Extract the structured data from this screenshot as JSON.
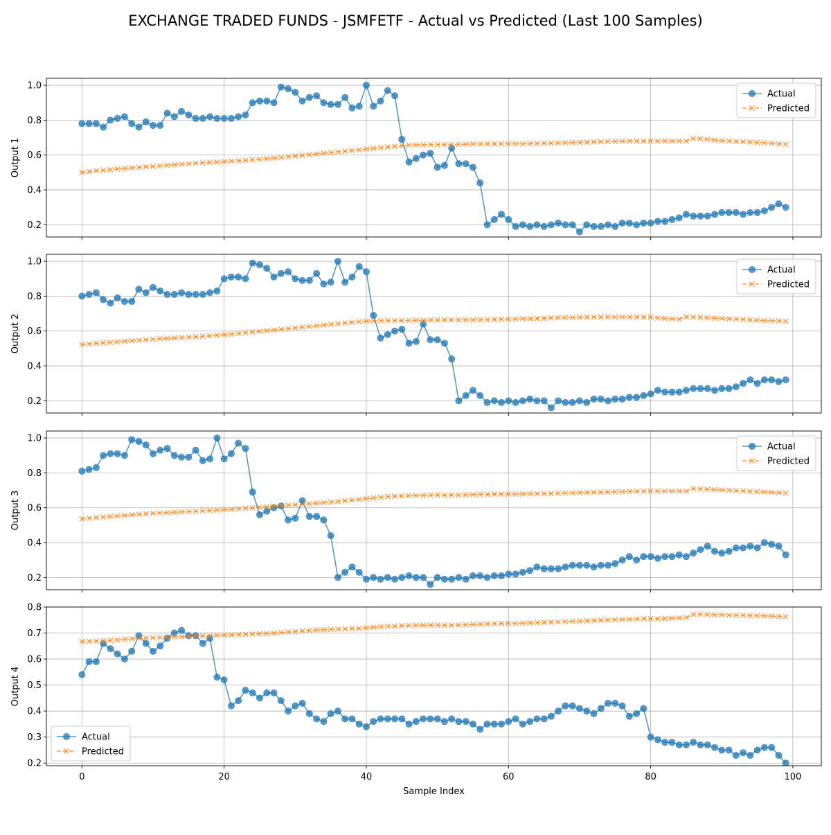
{
  "figure": {
    "title": "EXCHANGE TRADED FUNDS - JSMFETF - Actual vs Predicted (Last 100 Samples)",
    "xlabel": "Sample Index"
  },
  "colors": {
    "actual": "#1f77b4",
    "predicted": "#ff7f0e",
    "grid": "#b0b0b0"
  },
  "chart_data": [
    {
      "type": "line",
      "ylabel": "Output 1",
      "xlim": [
        -5,
        104
      ],
      "ylim": [
        0.13,
        1.04
      ],
      "xticks": [
        0,
        20,
        40,
        60,
        80,
        100
      ],
      "yticks": [
        0.2,
        0.4,
        0.6,
        0.8,
        1.0
      ],
      "ytick_labels": [
        "0.2",
        "0.4",
        "0.6",
        "0.8",
        "1.0"
      ],
      "grid": true,
      "legend": "top-right",
      "series": [
        {
          "name": "Actual",
          "marker": "circle",
          "values": [
            0.78,
            0.78,
            0.78,
            0.76,
            0.8,
            0.81,
            0.82,
            0.78,
            0.76,
            0.79,
            0.77,
            0.77,
            0.84,
            0.82,
            0.85,
            0.83,
            0.81,
            0.81,
            0.82,
            0.81,
            0.81,
            0.81,
            0.82,
            0.83,
            0.9,
            0.91,
            0.91,
            0.9,
            0.99,
            0.98,
            0.96,
            0.91,
            0.93,
            0.94,
            0.9,
            0.89,
            0.89,
            0.93,
            0.87,
            0.88,
            1.0,
            0.88,
            0.91,
            0.97,
            0.94,
            0.69,
            0.56,
            0.58,
            0.6,
            0.61,
            0.53,
            0.54,
            0.64,
            0.55,
            0.55,
            0.53,
            0.44,
            0.2,
            0.23,
            0.26,
            0.23,
            0.19,
            0.2,
            0.19,
            0.2,
            0.19,
            0.2,
            0.21,
            0.2,
            0.2,
            0.16,
            0.2,
            0.19,
            0.19,
            0.2,
            0.19,
            0.21,
            0.21,
            0.2,
            0.21,
            0.21,
            0.22,
            0.22,
            0.23,
            0.24,
            0.26,
            0.25,
            0.25,
            0.25,
            0.26,
            0.27,
            0.27,
            0.27,
            0.26,
            0.27,
            0.27,
            0.28,
            0.3,
            0.32,
            0.3
          ]
        },
        {
          "name": "Predicted",
          "marker": "x",
          "values": [
            0.5,
            0.505,
            0.51,
            0.513,
            0.516,
            0.52,
            0.523,
            0.526,
            0.529,
            0.532,
            0.535,
            0.538,
            0.541,
            0.544,
            0.547,
            0.55,
            0.553,
            0.556,
            0.558,
            0.56,
            0.562,
            0.565,
            0.567,
            0.57,
            0.573,
            0.576,
            0.579,
            0.582,
            0.586,
            0.59,
            0.594,
            0.598,
            0.602,
            0.606,
            0.61,
            0.614,
            0.618,
            0.622,
            0.626,
            0.63,
            0.634,
            0.638,
            0.642,
            0.646,
            0.65,
            0.654,
            0.657,
            0.658,
            0.659,
            0.66,
            0.66,
            0.66,
            0.66,
            0.661,
            0.662,
            0.663,
            0.663,
            0.664,
            0.664,
            0.664,
            0.664,
            0.664,
            0.664,
            0.665,
            0.666,
            0.667,
            0.668,
            0.669,
            0.67,
            0.671,
            0.672,
            0.673,
            0.675,
            0.676,
            0.677,
            0.678,
            0.679,
            0.68,
            0.68,
            0.68,
            0.68,
            0.68,
            0.68,
            0.68,
            0.68,
            0.68,
            0.695,
            0.693,
            0.69,
            0.685,
            0.682,
            0.68,
            0.678,
            0.676,
            0.674,
            0.672,
            0.67,
            0.667,
            0.664,
            0.662
          ]
        }
      ]
    },
    {
      "type": "line",
      "ylabel": "Output 2",
      "xlim": [
        -5,
        104
      ],
      "ylim": [
        0.13,
        1.04
      ],
      "xticks": [
        0,
        20,
        40,
        60,
        80,
        100
      ],
      "yticks": [
        0.2,
        0.4,
        0.6,
        0.8,
        1.0
      ],
      "ytick_labels": [
        "0.2",
        "0.4",
        "0.6",
        "0.8",
        "1.0"
      ],
      "grid": true,
      "legend": "top-right",
      "series": [
        {
          "name": "Actual",
          "marker": "circle",
          "values": [
            0.8,
            0.81,
            0.82,
            0.78,
            0.76,
            0.79,
            0.77,
            0.77,
            0.84,
            0.82,
            0.85,
            0.83,
            0.81,
            0.81,
            0.82,
            0.81,
            0.81,
            0.81,
            0.82,
            0.83,
            0.9,
            0.91,
            0.91,
            0.9,
            0.99,
            0.98,
            0.96,
            0.91,
            0.93,
            0.94,
            0.9,
            0.89,
            0.89,
            0.93,
            0.87,
            0.88,
            1.0,
            0.88,
            0.91,
            0.97,
            0.94,
            0.69,
            0.56,
            0.58,
            0.6,
            0.61,
            0.53,
            0.54,
            0.64,
            0.55,
            0.55,
            0.53,
            0.44,
            0.2,
            0.23,
            0.26,
            0.23,
            0.19,
            0.2,
            0.19,
            0.2,
            0.19,
            0.2,
            0.21,
            0.2,
            0.2,
            0.16,
            0.2,
            0.19,
            0.19,
            0.2,
            0.19,
            0.21,
            0.21,
            0.2,
            0.21,
            0.21,
            0.22,
            0.22,
            0.23,
            0.24,
            0.26,
            0.25,
            0.25,
            0.25,
            0.26,
            0.27,
            0.27,
            0.27,
            0.26,
            0.27,
            0.27,
            0.28,
            0.3,
            0.32,
            0.3,
            0.32,
            0.32,
            0.31,
            0.32
          ]
        },
        {
          "name": "Predicted",
          "marker": "x",
          "values": [
            0.522,
            0.526,
            0.529,
            0.532,
            0.535,
            0.538,
            0.541,
            0.544,
            0.547,
            0.55,
            0.553,
            0.556,
            0.558,
            0.56,
            0.562,
            0.565,
            0.567,
            0.57,
            0.573,
            0.576,
            0.579,
            0.582,
            0.586,
            0.59,
            0.594,
            0.598,
            0.602,
            0.606,
            0.61,
            0.614,
            0.618,
            0.622,
            0.626,
            0.63,
            0.634,
            0.638,
            0.642,
            0.646,
            0.65,
            0.654,
            0.657,
            0.658,
            0.659,
            0.66,
            0.66,
            0.66,
            0.66,
            0.661,
            0.662,
            0.663,
            0.663,
            0.664,
            0.664,
            0.664,
            0.664,
            0.664,
            0.664,
            0.665,
            0.666,
            0.667,
            0.668,
            0.669,
            0.67,
            0.671,
            0.672,
            0.673,
            0.675,
            0.676,
            0.677,
            0.678,
            0.679,
            0.68,
            0.68,
            0.68,
            0.68,
            0.68,
            0.68,
            0.68,
            0.68,
            0.68,
            0.68,
            0.675,
            0.672,
            0.67,
            0.668,
            0.682,
            0.68,
            0.678,
            0.676,
            0.674,
            0.672,
            0.67,
            0.668,
            0.666,
            0.664,
            0.662,
            0.66,
            0.659,
            0.658,
            0.656
          ]
        }
      ]
    },
    {
      "type": "line",
      "ylabel": "Output 3",
      "xlim": [
        -5,
        104
      ],
      "ylim": [
        0.13,
        1.04
      ],
      "xticks": [
        0,
        20,
        40,
        60,
        80,
        100
      ],
      "yticks": [
        0.2,
        0.4,
        0.6,
        0.8,
        1.0
      ],
      "ytick_labels": [
        "0.2",
        "0.4",
        "0.6",
        "0.8",
        "1.0"
      ],
      "grid": true,
      "legend": "top-right",
      "series": [
        {
          "name": "Actual",
          "marker": "circle",
          "values": [
            0.81,
            0.82,
            0.83,
            0.9,
            0.91,
            0.91,
            0.9,
            0.99,
            0.98,
            0.96,
            0.91,
            0.93,
            0.94,
            0.9,
            0.89,
            0.89,
            0.93,
            0.87,
            0.88,
            1.0,
            0.88,
            0.91,
            0.97,
            0.94,
            0.69,
            0.56,
            0.58,
            0.6,
            0.61,
            0.53,
            0.54,
            0.64,
            0.55,
            0.55,
            0.53,
            0.44,
            0.2,
            0.23,
            0.26,
            0.23,
            0.19,
            0.2,
            0.19,
            0.2,
            0.19,
            0.2,
            0.21,
            0.2,
            0.2,
            0.16,
            0.2,
            0.19,
            0.19,
            0.2,
            0.19,
            0.21,
            0.21,
            0.2,
            0.21,
            0.21,
            0.22,
            0.22,
            0.23,
            0.24,
            0.26,
            0.25,
            0.25,
            0.25,
            0.26,
            0.27,
            0.27,
            0.27,
            0.26,
            0.27,
            0.27,
            0.28,
            0.3,
            0.32,
            0.3,
            0.32,
            0.32,
            0.31,
            0.32,
            0.32,
            0.33,
            0.32,
            0.34,
            0.36,
            0.38,
            0.35,
            0.34,
            0.35,
            0.37,
            0.37,
            0.38,
            0.37,
            0.4,
            0.39,
            0.38,
            0.33
          ]
        },
        {
          "name": "Predicted",
          "marker": "x",
          "values": [
            0.536,
            0.54,
            0.544,
            0.547,
            0.55,
            0.553,
            0.556,
            0.559,
            0.562,
            0.565,
            0.568,
            0.57,
            0.572,
            0.574,
            0.576,
            0.578,
            0.58,
            0.582,
            0.584,
            0.586,
            0.588,
            0.59,
            0.593,
            0.596,
            0.599,
            0.602,
            0.605,
            0.608,
            0.611,
            0.614,
            0.617,
            0.62,
            0.623,
            0.626,
            0.629,
            0.632,
            0.636,
            0.64,
            0.644,
            0.648,
            0.652,
            0.656,
            0.66,
            0.664,
            0.666,
            0.668,
            0.669,
            0.67,
            0.671,
            0.672,
            0.672,
            0.672,
            0.672,
            0.673,
            0.674,
            0.675,
            0.676,
            0.677,
            0.678,
            0.678,
            0.678,
            0.678,
            0.679,
            0.68,
            0.68,
            0.681,
            0.682,
            0.683,
            0.684,
            0.685,
            0.686,
            0.687,
            0.688,
            0.689,
            0.69,
            0.691,
            0.692,
            0.693,
            0.694,
            0.695,
            0.695,
            0.695,
            0.695,
            0.695,
            0.695,
            0.695,
            0.71,
            0.708,
            0.706,
            0.704,
            0.702,
            0.7,
            0.698,
            0.696,
            0.694,
            0.692,
            0.69,
            0.688,
            0.686,
            0.684
          ]
        }
      ]
    },
    {
      "type": "line",
      "ylabel": "Output 4",
      "xlim": [
        -5,
        104
      ],
      "ylim": [
        0.19,
        0.8
      ],
      "xticks": [
        0,
        20,
        40,
        60,
        80,
        100
      ],
      "xtick_labels": [
        "0",
        "20",
        "40",
        "60",
        "80",
        "100"
      ],
      "yticks": [
        0.2,
        0.3,
        0.4,
        0.5,
        0.6,
        0.7,
        0.8
      ],
      "ytick_labels": [
        "0.2",
        "0.3",
        "0.4",
        "0.5",
        "0.6",
        "0.7",
        "0.8"
      ],
      "grid": true,
      "legend": "bottom-left",
      "series": [
        {
          "name": "Actual",
          "marker": "circle",
          "values": [
            0.54,
            0.59,
            0.59,
            0.66,
            0.64,
            0.62,
            0.6,
            0.63,
            0.69,
            0.66,
            0.63,
            0.65,
            0.68,
            0.7,
            0.71,
            0.69,
            0.69,
            0.66,
            0.68,
            0.53,
            0.52,
            0.42,
            0.44,
            0.48,
            0.47,
            0.45,
            0.47,
            0.47,
            0.44,
            0.4,
            0.42,
            0.43,
            0.39,
            0.37,
            0.36,
            0.39,
            0.4,
            0.37,
            0.37,
            0.35,
            0.34,
            0.36,
            0.37,
            0.37,
            0.37,
            0.37,
            0.35,
            0.36,
            0.37,
            0.37,
            0.37,
            0.36,
            0.37,
            0.36,
            0.36,
            0.35,
            0.33,
            0.35,
            0.35,
            0.35,
            0.36,
            0.37,
            0.35,
            0.36,
            0.37,
            0.37,
            0.38,
            0.4,
            0.42,
            0.42,
            0.41,
            0.4,
            0.39,
            0.41,
            0.43,
            0.43,
            0.42,
            0.38,
            0.39,
            0.41,
            0.3,
            0.29,
            0.28,
            0.28,
            0.27,
            0.27,
            0.28,
            0.27,
            0.27,
            0.26,
            0.25,
            0.25,
            0.23,
            0.24,
            0.23,
            0.25,
            0.26,
            0.26,
            0.23,
            0.2
          ]
        },
        {
          "name": "Predicted",
          "marker": "x",
          "values": [
            0.667,
            0.668,
            0.669,
            0.67,
            0.672,
            0.674,
            0.676,
            0.678,
            0.68,
            0.681,
            0.682,
            0.683,
            0.684,
            0.685,
            0.686,
            0.687,
            0.688,
            0.689,
            0.69,
            0.691,
            0.692,
            0.693,
            0.694,
            0.695,
            0.696,
            0.697,
            0.698,
            0.7,
            0.702,
            0.704,
            0.706,
            0.708,
            0.71,
            0.712,
            0.713,
            0.714,
            0.715,
            0.716,
            0.717,
            0.718,
            0.72,
            0.722,
            0.724,
            0.726,
            0.727,
            0.728,
            0.729,
            0.73,
            0.73,
            0.73,
            0.73,
            0.73,
            0.73,
            0.731,
            0.732,
            0.733,
            0.734,
            0.735,
            0.736,
            0.737,
            0.737,
            0.737,
            0.738,
            0.739,
            0.74,
            0.741,
            0.742,
            0.743,
            0.744,
            0.745,
            0.746,
            0.747,
            0.748,
            0.749,
            0.75,
            0.751,
            0.752,
            0.753,
            0.754,
            0.755,
            0.755,
            0.755,
            0.756,
            0.757,
            0.758,
            0.759,
            0.772,
            0.772,
            0.771,
            0.77,
            0.77,
            0.769,
            0.768,
            0.768,
            0.767,
            0.767,
            0.766,
            0.765,
            0.764,
            0.763
          ]
        }
      ]
    }
  ]
}
